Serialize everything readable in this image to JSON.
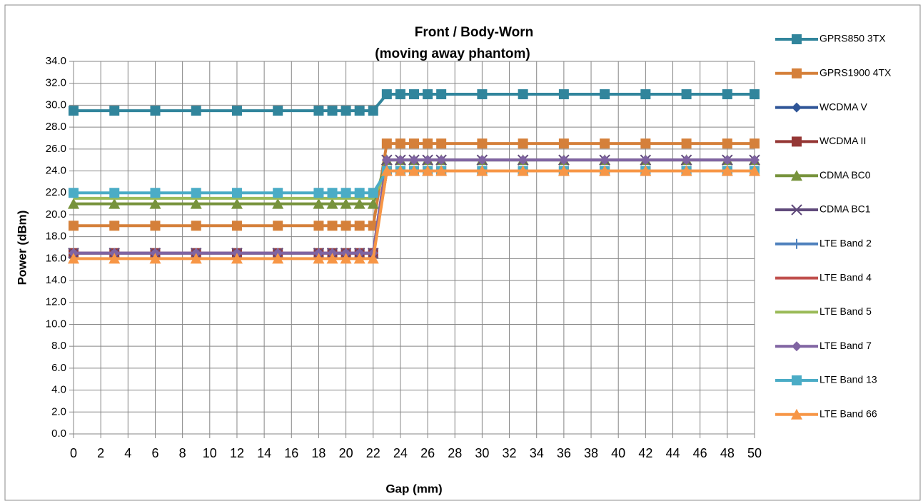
{
  "chart_data": {
    "type": "line",
    "title": "Front / Body-Worn",
    "subtitle": "(moving away phantom)",
    "x_label": "Gap (mm)",
    "y_label": "Power (dBm)",
    "x": [
      0,
      3,
      6,
      9,
      12,
      15,
      18,
      19,
      20,
      21,
      22,
      23,
      24,
      25,
      26,
      27,
      30,
      33,
      36,
      39,
      42,
      45,
      48,
      50
    ],
    "xlim": [
      0,
      50
    ],
    "xticks": [
      0,
      2,
      4,
      6,
      8,
      10,
      12,
      14,
      16,
      18,
      20,
      22,
      24,
      26,
      28,
      30,
      32,
      34,
      36,
      38,
      40,
      42,
      44,
      46,
      48,
      50
    ],
    "ylim": [
      0,
      34
    ],
    "yticks": [
      {
        "value": 0,
        "label": "0.0"
      },
      {
        "value": 2,
        "label": "2.0"
      },
      {
        "value": 4,
        "label": "4.0"
      },
      {
        "value": 6,
        "label": "6.0"
      },
      {
        "value": 8,
        "label": "8.0"
      },
      {
        "value": 10,
        "label": "10.0"
      },
      {
        "value": 12,
        "label": "12.0"
      },
      {
        "value": 14,
        "label": "14.0"
      },
      {
        "value": 16,
        "label": "16.0"
      },
      {
        "value": 18,
        "label": "18.0"
      },
      {
        "value": 20,
        "label": "20.0"
      },
      {
        "value": 22,
        "label": "22.0"
      },
      {
        "value": 24,
        "label": "24.0"
      },
      {
        "value": 26,
        "label": "26.0"
      },
      {
        "value": 28,
        "label": "28.0"
      },
      {
        "value": 30,
        "label": "30.0"
      },
      {
        "value": 32,
        "label": "32.0"
      },
      {
        "value": 34,
        "label": "34.0"
      }
    ],
    "grid": true,
    "legend": "right",
    "series": [
      {
        "name": "GPRS850 3TX",
        "color": "#31859c",
        "marker": "square",
        "values": [
          29.5,
          29.5,
          29.5,
          29.5,
          29.5,
          29.5,
          29.5,
          29.5,
          29.5,
          29.5,
          29.5,
          31,
          31,
          31,
          31,
          31,
          31,
          31,
          31,
          31,
          31,
          31,
          31,
          31
        ]
      },
      {
        "name": "GPRS1900 4TX",
        "color": "#d5803a",
        "marker": "square",
        "values": [
          19,
          19,
          19,
          19,
          19,
          19,
          19,
          19,
          19,
          19,
          19,
          26.5,
          26.5,
          26.5,
          26.5,
          26.5,
          26.5,
          26.5,
          26.5,
          26.5,
          26.5,
          26.5,
          26.5,
          26.5
        ]
      },
      {
        "name": "WCDMA V",
        "color": "#2f5597",
        "marker": "diamond",
        "values": [
          16.5,
          16.5,
          16.5,
          16.5,
          16.5,
          16.5,
          16.5,
          16.5,
          16.5,
          16.5,
          16.5,
          24,
          24,
          24,
          24,
          24,
          24,
          24,
          24,
          24,
          24,
          24,
          24,
          24
        ]
      },
      {
        "name": "WCDMA II",
        "color": "#953735",
        "marker": "square",
        "values": [
          16.5,
          16.5,
          16.5,
          16.5,
          16.5,
          16.5,
          16.5,
          16.5,
          16.5,
          16.5,
          16.5,
          24,
          24,
          24,
          24,
          24,
          24,
          24,
          24,
          24,
          24,
          24,
          24,
          24
        ]
      },
      {
        "name": "CDMA BC0",
        "color": "#77933c",
        "marker": "triangle",
        "values": [
          21,
          21,
          21,
          21,
          21,
          21,
          21,
          21,
          21,
          21,
          21,
          25,
          25,
          25,
          25,
          25,
          25,
          25,
          25,
          25,
          25,
          25,
          25,
          25
        ]
      },
      {
        "name": "CDMA BC1",
        "color": "#604a7b",
        "marker": "x",
        "values": [
          16.5,
          16.5,
          16.5,
          16.5,
          16.5,
          16.5,
          16.5,
          16.5,
          16.5,
          16.5,
          16.5,
          25,
          25,
          25,
          25,
          25,
          25,
          25,
          25,
          25,
          25,
          25,
          25,
          25
        ]
      },
      {
        "name": "LTE Band 2",
        "color": "#4f81bd",
        "marker": "plus",
        "values": [
          16.5,
          16.5,
          16.5,
          16.5,
          16.5,
          16.5,
          16.5,
          16.5,
          16.5,
          16.5,
          16.5,
          24,
          24,
          24,
          24,
          24,
          24,
          24,
          24,
          24,
          24,
          24,
          24,
          24
        ]
      },
      {
        "name": "LTE Band 4",
        "color": "#c0504d",
        "marker": "none",
        "values": [
          16.5,
          16.5,
          16.5,
          16.5,
          16.5,
          16.5,
          16.5,
          16.5,
          16.5,
          16.5,
          16.5,
          24,
          24,
          24,
          24,
          24,
          24,
          24,
          24,
          24,
          24,
          24,
          24,
          24
        ]
      },
      {
        "name": "LTE Band 5",
        "color": "#9bbb59",
        "marker": "none",
        "values": [
          21.5,
          21.5,
          21.5,
          21.5,
          21.5,
          21.5,
          21.5,
          21.5,
          21.5,
          21.5,
          21.5,
          24,
          24,
          24,
          24,
          24,
          24,
          24,
          24,
          24,
          24,
          24,
          24,
          24
        ]
      },
      {
        "name": "LTE Band 7",
        "color": "#8064a2",
        "marker": "diamond",
        "values": [
          16.5,
          16.5,
          16.5,
          16.5,
          16.5,
          16.5,
          16.5,
          16.5,
          16.5,
          16.5,
          16.5,
          25,
          25,
          25,
          25,
          25,
          25,
          25,
          25,
          25,
          25,
          25,
          25,
          25
        ]
      },
      {
        "name": "LTE Band 13",
        "color": "#4bacc6",
        "marker": "square",
        "values": [
          22,
          22,
          22,
          22,
          22,
          22,
          22,
          22,
          22,
          22,
          22,
          24,
          24,
          24,
          24,
          24,
          24,
          24,
          24,
          24,
          24,
          24,
          24,
          24
        ]
      },
      {
        "name": "LTE Band 66",
        "color": "#f79646",
        "marker": "triangle",
        "values": [
          16,
          16,
          16,
          16,
          16,
          16,
          16,
          16,
          16,
          16,
          16,
          24,
          24,
          24,
          24,
          24,
          24,
          24,
          24,
          24,
          24,
          24,
          24,
          24
        ]
      }
    ]
  }
}
